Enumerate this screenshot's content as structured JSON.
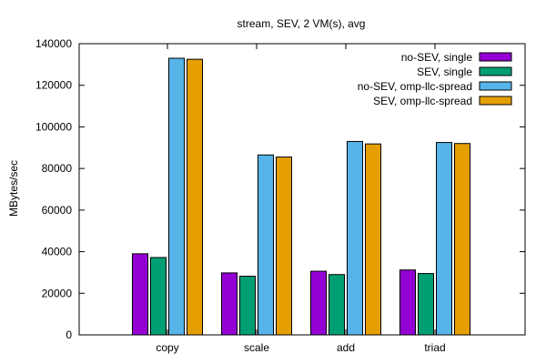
{
  "chart_data": {
    "type": "bar",
    "title": "stream, SEV, 2 VM(s), avg",
    "xlabel": "",
    "ylabel": "MBytes/sec",
    "ylim": [
      0,
      140000
    ],
    "yticks": [
      0,
      20000,
      40000,
      60000,
      80000,
      100000,
      120000,
      140000
    ],
    "categories": [
      "copy",
      "scale",
      "add",
      "triad"
    ],
    "grid": false,
    "legend_position": "top-right",
    "series": [
      {
        "name": "no-SEV, single",
        "color": "#9400d3",
        "values": [
          39000,
          29800,
          30600,
          31200
        ]
      },
      {
        "name": "SEV, single",
        "color": "#009e73",
        "values": [
          37200,
          28200,
          29000,
          29500
        ]
      },
      {
        "name": "no-SEV, omp-llc-spread",
        "color": "#56b4e9",
        "values": [
          133000,
          86500,
          93000,
          92500
        ]
      },
      {
        "name": "SEV, omp-llc-spread",
        "color": "#e69f00",
        "values": [
          132500,
          85500,
          91800,
          92000
        ]
      }
    ]
  }
}
